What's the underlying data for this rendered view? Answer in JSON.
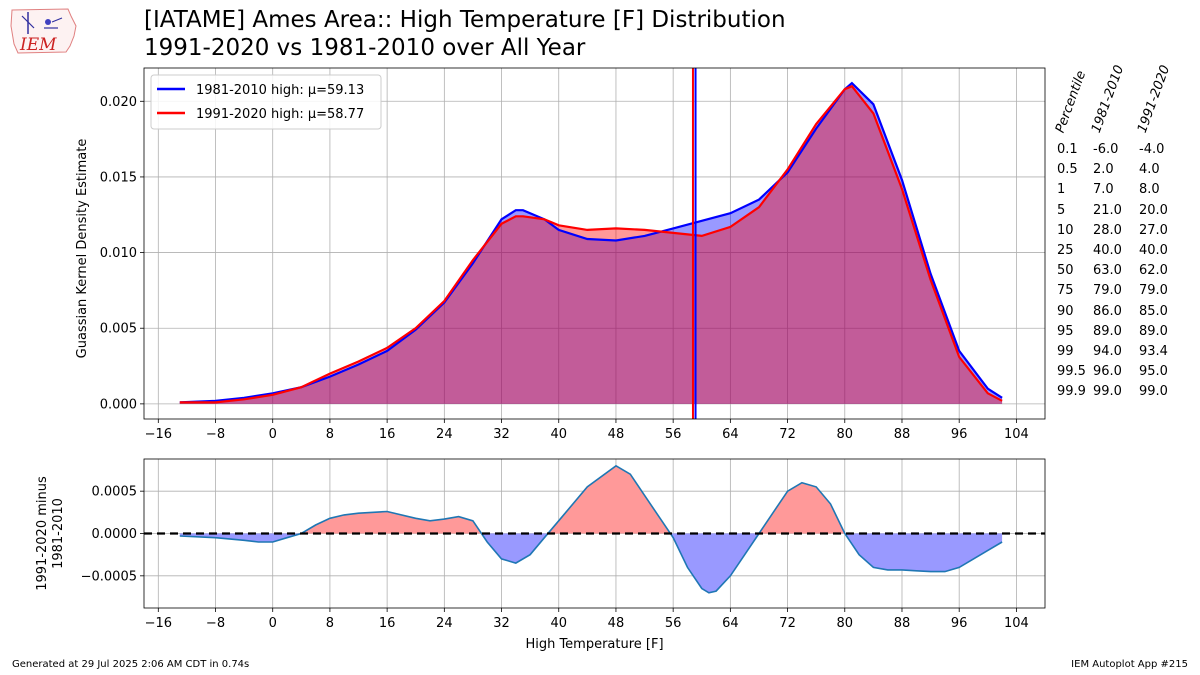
{
  "title_line1": "[IATAME] Ames Area:: High Temperature [F] Distribution",
  "title_line2": "1991-2020 vs 1981-2010 over All Year",
  "logo_text": "IEM",
  "footer_left": "Generated at 29 Jul 2025 2:06 AM CDT in 0.74s",
  "footer_right": "IEM Autoplot App #215",
  "colors": {
    "series_a": "#0000ff",
    "series_b": "#ff0000",
    "fill_overlap": "#b05090",
    "diff_line": "#1f77b4",
    "diff_positive": "#ff9999",
    "diff_negative": "#9999ff",
    "grid": "#b0b0b0"
  },
  "chart_data": [
    {
      "type": "area",
      "ylabel": "Guassian Kernel Density Estimate",
      "xlim": [
        -18,
        108
      ],
      "ylim": [
        -0.001,
        0.0222
      ],
      "xticks": [
        -16,
        -8,
        0,
        8,
        16,
        24,
        32,
        40,
        48,
        56,
        64,
        72,
        80,
        88,
        96,
        104
      ],
      "xtick_labels": [
        "−16",
        "−8",
        "0",
        "8",
        "16",
        "24",
        "32",
        "40",
        "48",
        "56",
        "64",
        "72",
        "80",
        "88",
        "96",
        "104"
      ],
      "yticks": [
        0,
        0.005,
        0.01,
        0.015,
        0.02
      ],
      "ytick_labels": [
        "0.000",
        "0.005",
        "0.010",
        "0.015",
        "0.020"
      ],
      "grid": true,
      "legend_position": "top-left",
      "x": [
        -13,
        -8,
        -4,
        0,
        4,
        8,
        12,
        16,
        20,
        24,
        28,
        32,
        34,
        35,
        38,
        40,
        44,
        48,
        52,
        56,
        60,
        64,
        68,
        72,
        76,
        80,
        81,
        84,
        88,
        92,
        96,
        100,
        102
      ],
      "series": [
        {
          "name": "1981-2010 high: μ=59.13",
          "mean": 59.13,
          "values": [
            0.0001,
            0.0002,
            0.0004,
            0.0007,
            0.0011,
            0.0018,
            0.0026,
            0.0035,
            0.0049,
            0.0067,
            0.0093,
            0.0122,
            0.0128,
            0.0128,
            0.0122,
            0.0115,
            0.0109,
            0.0108,
            0.0111,
            0.0116,
            0.0121,
            0.0126,
            0.0135,
            0.0153,
            0.0182,
            0.0208,
            0.0212,
            0.0198,
            0.0148,
            0.0086,
            0.0035,
            0.001,
            0.0004
          ]
        },
        {
          "name": "1991-2020 high: μ=58.77",
          "mean": 58.77,
          "values": [
            0.0001,
            0.0001,
            0.0003,
            0.0006,
            0.0011,
            0.002,
            0.0028,
            0.0037,
            0.005,
            0.0068,
            0.0095,
            0.0119,
            0.0124,
            0.0124,
            0.0122,
            0.0118,
            0.0115,
            0.0116,
            0.0115,
            0.0113,
            0.0111,
            0.0117,
            0.013,
            0.0155,
            0.0185,
            0.0208,
            0.021,
            0.0192,
            0.0142,
            0.0082,
            0.0031,
            0.0007,
            0.0002
          ]
        }
      ]
    },
    {
      "type": "line",
      "xlabel": "High Temperature [F]",
      "ylabel": "1991-2020 minus 1981-2010",
      "xlim": [
        -18,
        108
      ],
      "ylim": [
        -0.00088,
        0.00088
      ],
      "xticks": [
        -16,
        -8,
        0,
        8,
        16,
        24,
        32,
        40,
        48,
        56,
        64,
        72,
        80,
        88,
        96,
        104
      ],
      "xtick_labels": [
        "−16",
        "−8",
        "0",
        "8",
        "16",
        "24",
        "32",
        "40",
        "48",
        "56",
        "64",
        "72",
        "80",
        "88",
        "96",
        "104"
      ],
      "yticks": [
        -0.0005,
        0,
        0.0005
      ],
      "ytick_labels": [
        "−0.0005",
        "0.0000",
        "0.0005"
      ],
      "grid": true,
      "x": [
        -13,
        -8,
        -4,
        -2,
        0,
        2,
        4,
        6,
        8,
        10,
        12,
        16,
        20,
        22,
        24,
        26,
        28,
        30,
        32,
        34,
        36,
        38,
        40,
        44,
        48,
        50,
        52,
        54,
        56,
        58,
        60,
        61,
        62,
        64,
        66,
        68,
        70,
        72,
        74,
        76,
        78,
        80,
        82,
        84,
        86,
        88,
        90,
        92,
        94,
        96,
        98,
        100,
        102
      ],
      "values": [
        -3e-05,
        -5e-05,
        -8e-05,
        -0.0001,
        -0.0001,
        -5e-05,
        0,
        0.0001,
        0.00018,
        0.00022,
        0.00024,
        0.00026,
        0.00018,
        0.00015,
        0.00017,
        0.0002,
        0.00015,
        -0.0001,
        -0.0003,
        -0.00035,
        -0.00025,
        -5e-05,
        0.00015,
        0.00055,
        0.0008,
        0.0007,
        0.00045,
        0.0002,
        -5e-05,
        -0.0004,
        -0.00065,
        -0.0007,
        -0.00068,
        -0.0005,
        -0.00025,
        0,
        0.00025,
        0.0005,
        0.0006,
        0.00055,
        0.00035,
        0,
        -0.00025,
        -0.0004,
        -0.00043,
        -0.00043,
        -0.00044,
        -0.00045,
        -0.00045,
        -0.0004,
        -0.0003,
        -0.0002,
        -0.0001
      ],
      "zero_line": 0
    }
  ],
  "percentile_table": {
    "headers": [
      "Percentile",
      "1981-2010",
      "1991-2020"
    ],
    "rows": [
      [
        "0.1",
        "-6.0",
        "-4.0"
      ],
      [
        "0.5",
        "2.0",
        "4.0"
      ],
      [
        "1",
        "7.0",
        "8.0"
      ],
      [
        "5",
        "21.0",
        "20.0"
      ],
      [
        "10",
        "28.0",
        "27.0"
      ],
      [
        "25",
        "40.0",
        "40.0"
      ],
      [
        "50",
        "63.0",
        "62.0"
      ],
      [
        "75",
        "79.0",
        "79.0"
      ],
      [
        "90",
        "86.0",
        "85.0"
      ],
      [
        "95",
        "89.0",
        "89.0"
      ],
      [
        "99",
        "94.0",
        "93.4"
      ],
      [
        "99.5",
        "96.0",
        "95.0"
      ],
      [
        "99.9",
        "99.0",
        "99.0"
      ]
    ]
  }
}
